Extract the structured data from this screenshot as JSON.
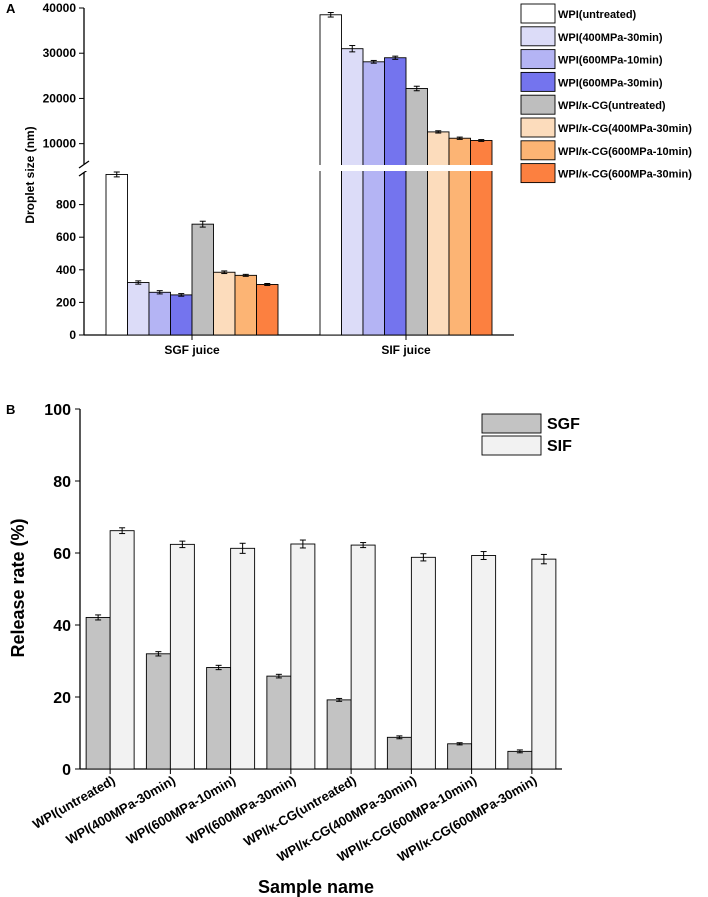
{
  "chart_data": [
    {
      "panel_label": "A",
      "type": "bar",
      "ylabel": "Droplet size (nm)",
      "categories": [
        "SGF juice",
        "SIF juice"
      ],
      "ylim_lower": [
        0,
        1000
      ],
      "ylim_upper": [
        5500,
        40000
      ],
      "y_ticks_lower": [
        "0",
        "200",
        "400",
        "600",
        "800"
      ],
      "y_ticks_upper": [
        "10000",
        "20000",
        "30000",
        "40000"
      ],
      "series": [
        {
          "name": "WPI(untreated)",
          "color": "#ffffff",
          "values": [
            985,
            38500
          ],
          "errors": [
            15,
            500
          ]
        },
        {
          "name": "WPI(400MPa-30min)",
          "color": "#dcdcf8",
          "values": [
            322,
            31000
          ],
          "errors": [
            10,
            700
          ]
        },
        {
          "name": "WPI(600MPa-10min)",
          "color": "#b4b4f4",
          "values": [
            262,
            28100
          ],
          "errors": [
            10,
            300
          ]
        },
        {
          "name": "WPI(600MPa-30min)",
          "color": "#7474ee",
          "values": [
            246,
            29000
          ],
          "errors": [
            8,
            350
          ]
        },
        {
          "name": "WPI/κ-CG(untreated)",
          "color": "#bebebe",
          "values": [
            680,
            22200
          ],
          "errors": [
            18,
            500
          ]
        },
        {
          "name": "WPI/κ-CG(400MPa-30min)",
          "color": "#fcdcbc",
          "values": [
            385,
            12600
          ],
          "errors": [
            8,
            250
          ]
        },
        {
          "name": "WPI/κ-CG(600MPa-10min)",
          "color": "#fcb474",
          "values": [
            366,
            11200
          ],
          "errors": [
            6,
            250
          ]
        },
        {
          "name": "WPI/κ-CG(600MPa-30min)",
          "color": "#fc8040",
          "values": [
            310,
            10700
          ],
          "errors": [
            6,
            200
          ]
        }
      ]
    },
    {
      "panel_label": "B",
      "type": "bar",
      "xlabel": "Sample name",
      "ylabel": "Release rate (%)",
      "ylim": [
        0,
        100
      ],
      "y_ticks": [
        "0",
        "20",
        "40",
        "60",
        "80",
        "100"
      ],
      "categories": [
        "WPI(untreated)",
        "WPI(400MPa-30min)",
        "WPI(600MPa-10min)",
        "WPI(600MPa-30min)",
        "WPI/κ-CG(untreated)",
        "WPI/κ-CG(400MPa-30min)",
        "WPI/κ-CG(600MPa-10min)",
        "WPI/κ-CG(600MPa-30min)"
      ],
      "series": [
        {
          "name": "SGF",
          "color": "#c3c3c3",
          "values": [
            42.1,
            32.0,
            28.2,
            25.8,
            19.2,
            8.8,
            7.0,
            4.9
          ],
          "errors": [
            0.7,
            0.6,
            0.6,
            0.5,
            0.4,
            0.4,
            0.3,
            0.4
          ]
        },
        {
          "name": "SIF",
          "color": "#f2f2f2",
          "values": [
            66.2,
            62.4,
            61.3,
            62.5,
            62.2,
            58.8,
            59.3,
            58.3
          ],
          "errors": [
            0.8,
            0.9,
            1.4,
            1.1,
            0.7,
            1.0,
            1.1,
            1.3
          ]
        }
      ]
    }
  ]
}
